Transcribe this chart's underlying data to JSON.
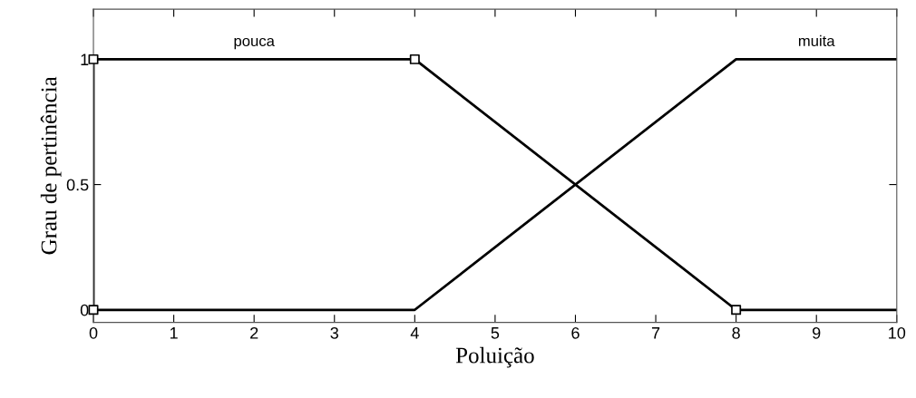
{
  "chart_data": {
    "type": "line",
    "xlabel": "Poluição",
    "ylabel": "Grau de pertinência",
    "series": [
      {
        "name": "pouca",
        "color": "#000000",
        "x": [
          0,
          0,
          4,
          8,
          10
        ],
        "values": [
          0,
          1,
          1,
          0,
          0
        ]
      },
      {
        "name": "muita",
        "color": "#000000",
        "x": [
          0,
          4,
          8,
          10
        ],
        "values": [
          0,
          0,
          1,
          1
        ]
      },
      {
        "type": "scatter",
        "marker": "square",
        "color": "#000000",
        "x": [
          0,
          0,
          4,
          8
        ],
        "values": [
          0,
          1,
          1,
          0
        ]
      }
    ],
    "xlim": [
      0,
      10
    ],
    "xticks": [
      0,
      1,
      2,
      3,
      4,
      5,
      6,
      7,
      8,
      9,
      10
    ],
    "ylim": [
      -0.05,
      1.2
    ],
    "yticks": [
      0,
      0.5,
      1
    ],
    "grid": false,
    "legend": false,
    "marker": "none",
    "line_style": "solid"
  }
}
